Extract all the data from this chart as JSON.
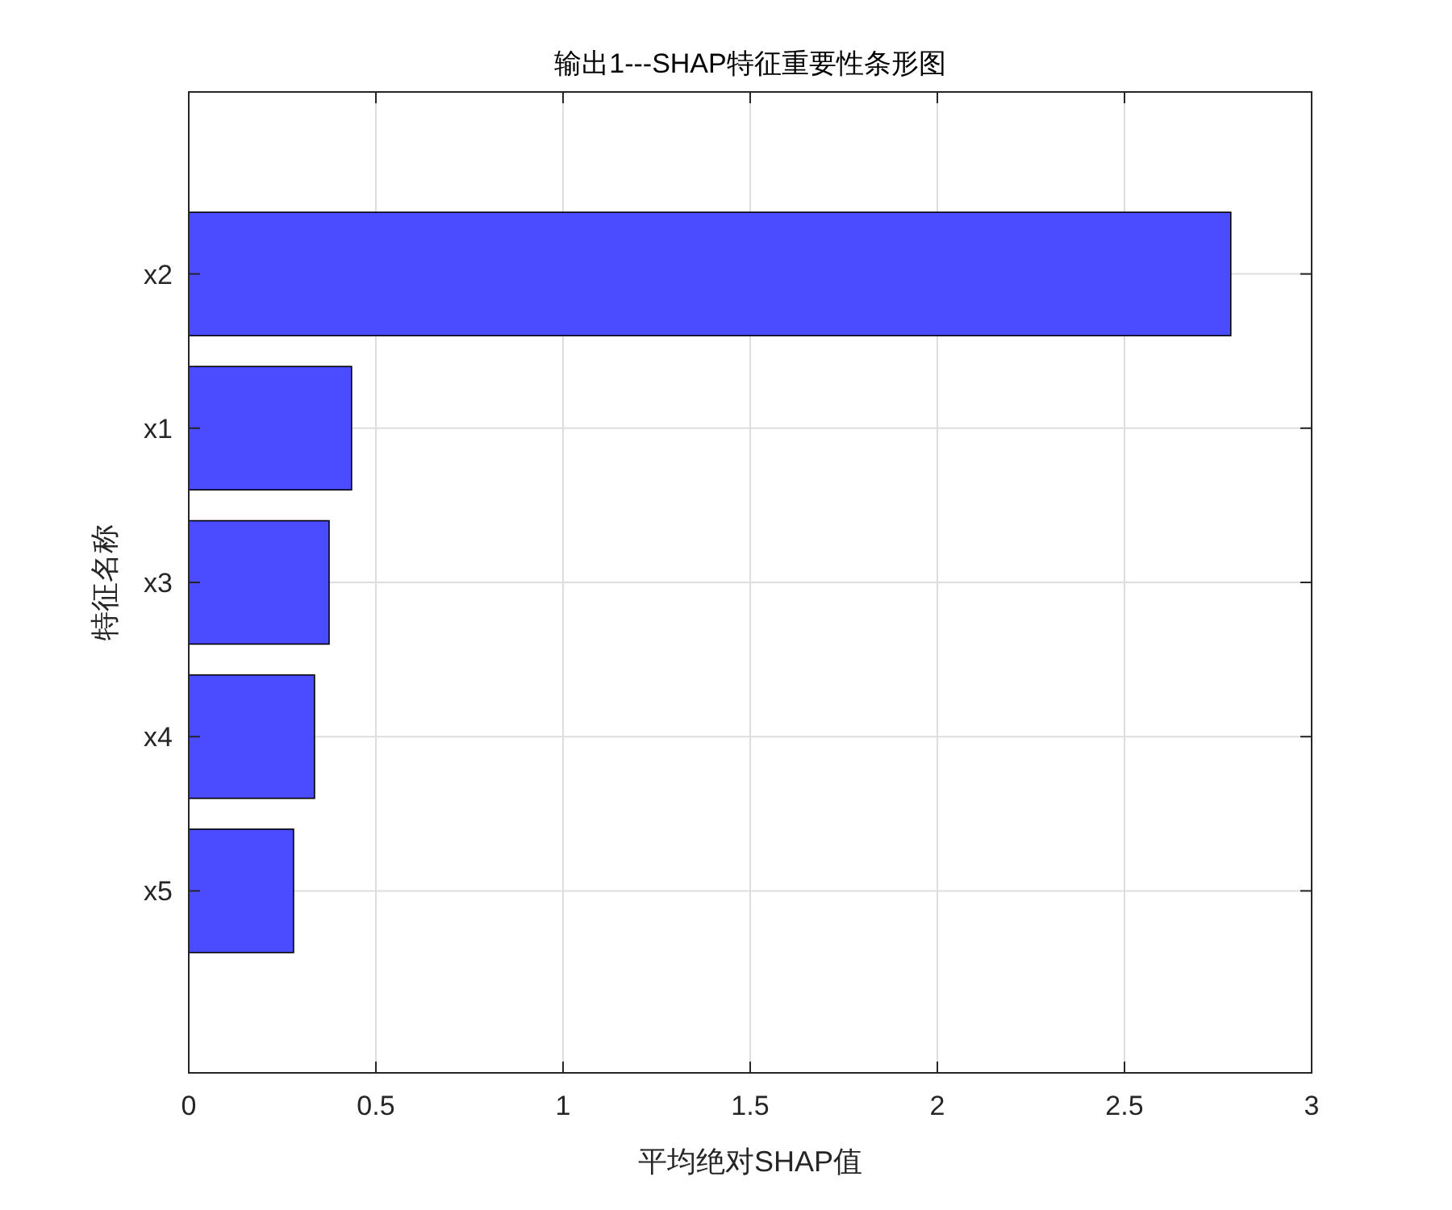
{
  "chart_data": {
    "type": "bar",
    "orientation": "horizontal",
    "title": "输出1---SHAP特征重要性条形图",
    "xlabel": "平均绝对SHAP值",
    "ylabel": "特征名称",
    "categories": [
      "x2",
      "x1",
      "x3",
      "x4",
      "x5"
    ],
    "values": [
      2.784,
      0.435,
      0.375,
      0.336,
      0.28
    ],
    "color": "#4b4bff",
    "xlim": [
      0,
      3
    ],
    "xticks": [
      0,
      0.5,
      1,
      1.5,
      2,
      2.5,
      3
    ],
    "grid": true
  }
}
